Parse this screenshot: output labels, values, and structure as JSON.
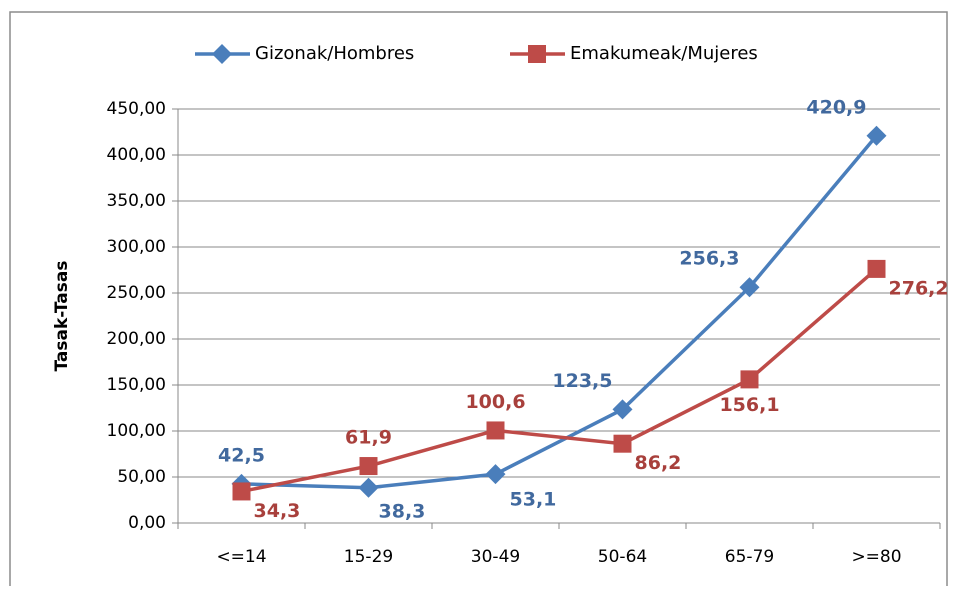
{
  "chart_data": {
    "type": "line",
    "y_label": "Tasak-Tasas",
    "categories": [
      "<=14",
      "15-29",
      "30-49",
      "50-64",
      "65-79",
      ">=80"
    ],
    "series": [
      {
        "name": "Gizonak/Hombres",
        "color": "#4a7ebb",
        "marker": "diamond",
        "values": [
          42.5,
          38.3,
          53.1,
          123.5,
          256.3,
          420.9
        ],
        "value_labels": [
          "42,5",
          "38,3",
          "53,1",
          "123,5",
          "256,3",
          "420,9"
        ]
      },
      {
        "name": "Emakumeak/Mujeres",
        "color": "#be4b48",
        "marker": "square",
        "values": [
          34.3,
          61.9,
          100.6,
          86.2,
          156.1,
          276.2
        ],
        "value_labels": [
          "34,3",
          "61,9",
          "100,6",
          "86,2",
          "156,1",
          "276,2"
        ]
      }
    ],
    "ylim": [
      0,
      450
    ],
    "yticks": [
      {
        "value": 0,
        "label": "0,00"
      },
      {
        "value": 50,
        "label": "50,00"
      },
      {
        "value": 100,
        "label": "100,00"
      },
      {
        "value": 150,
        "label": "150,00"
      },
      {
        "value": 200,
        "label": "200,00"
      },
      {
        "value": 250,
        "label": "250,00"
      },
      {
        "value": 300,
        "label": "300,00"
      },
      {
        "value": 350,
        "label": "350,00"
      },
      {
        "value": 400,
        "label": "400,00"
      },
      {
        "value": 450,
        "label": "450,00"
      }
    ],
    "grid": true,
    "legend": "top"
  }
}
